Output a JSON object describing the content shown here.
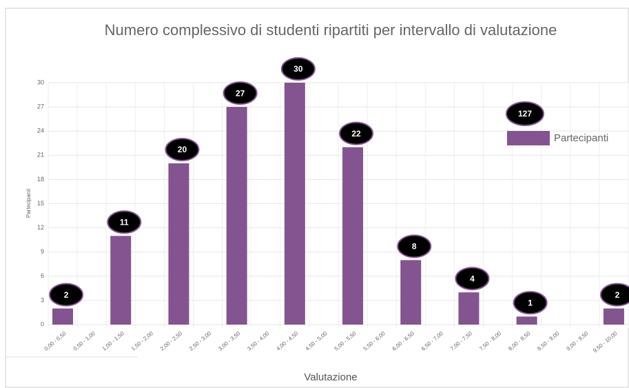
{
  "chart_data": {
    "type": "bar",
    "title": "Numero complessivo di studenti ripartiti per intervallo di valutazione",
    "x_label": "Valutazione",
    "y_label": "Partecipanti",
    "categories": [
      "0,00 - 0,50",
      "0,50 - 1,00",
      "1,00 - 1,50",
      "1,50 - 2,00",
      "2,00 - 2,50",
      "2,50 - 3,00",
      "3,00 - 3,50",
      "3,50 - 4,00",
      "4,00 - 4,50",
      "4,50 - 5,00",
      "5,00 - 5,50",
      "5,50 - 6,00",
      "6,00 - 6,50",
      "6,50 - 7,00",
      "7,00 - 7,50",
      "7,50 - 8,00",
      "8,00 - 8,50",
      "8,50 - 9,00",
      "9,00 - 9,50",
      "9,50 - 10,00"
    ],
    "series": [
      {
        "name": "Partecipanti",
        "color": "#845491",
        "values": [
          2,
          0,
          11,
          0,
          20,
          0,
          27,
          0,
          30,
          0,
          22,
          0,
          8,
          0,
          4,
          0,
          1,
          0,
          0,
          2
        ]
      }
    ],
    "annotation": "127",
    "ylim": [
      0,
      30
    ],
    "yticks": [
      0,
      3,
      6,
      9,
      12,
      15,
      18,
      21,
      24,
      27,
      30
    ],
    "grid": true,
    "legend": "top-right"
  }
}
